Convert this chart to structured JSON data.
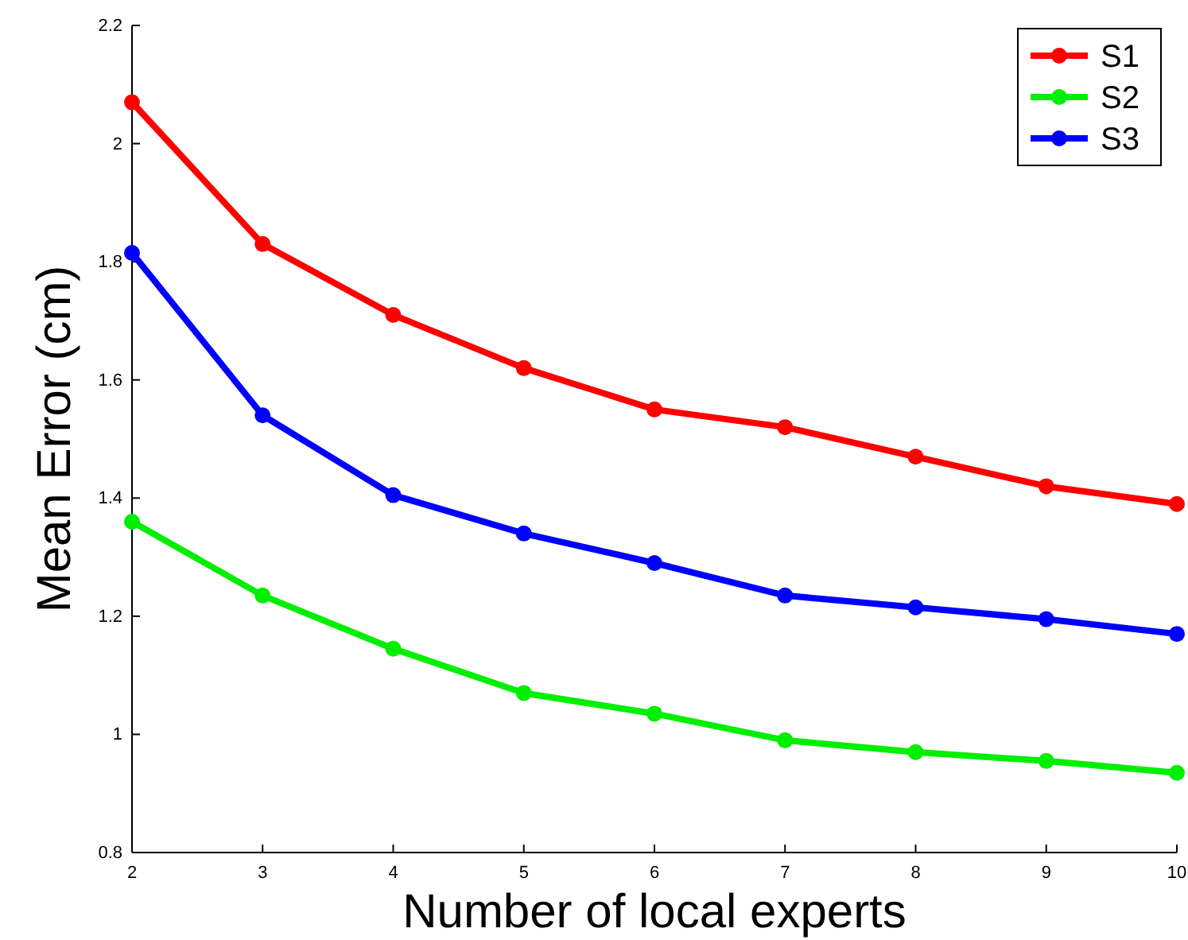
{
  "chart_data": {
    "type": "line",
    "xlabel": "Number of local experts",
    "ylabel": "Mean Error (cm)",
    "x": [
      2,
      3,
      4,
      5,
      6,
      7,
      8,
      9,
      10
    ],
    "series": [
      {
        "name": "S1",
        "color": "#ff0000",
        "values": [
          2.07,
          1.83,
          1.71,
          1.62,
          1.55,
          1.52,
          1.47,
          1.42,
          1.39
        ]
      },
      {
        "name": "S2",
        "color": "#00ee00",
        "values": [
          1.36,
          1.235,
          1.145,
          1.07,
          1.035,
          0.99,
          0.97,
          0.955,
          0.935
        ]
      },
      {
        "name": "S3",
        "color": "#0000ff",
        "values": [
          1.815,
          1.54,
          1.405,
          1.34,
          1.29,
          1.235,
          1.215,
          1.195,
          1.17
        ]
      }
    ],
    "xlim": [
      2,
      10
    ],
    "ylim": [
      0.8,
      2.2
    ],
    "xticks": [
      2,
      3,
      4,
      5,
      6,
      7,
      8,
      9,
      10
    ],
    "yticks": [
      0.8,
      1,
      1.2,
      1.4,
      1.6,
      1.8,
      2,
      2.2
    ],
    "grid": false,
    "legend": "top right",
    "marker": "circle",
    "line_style": "solid"
  }
}
